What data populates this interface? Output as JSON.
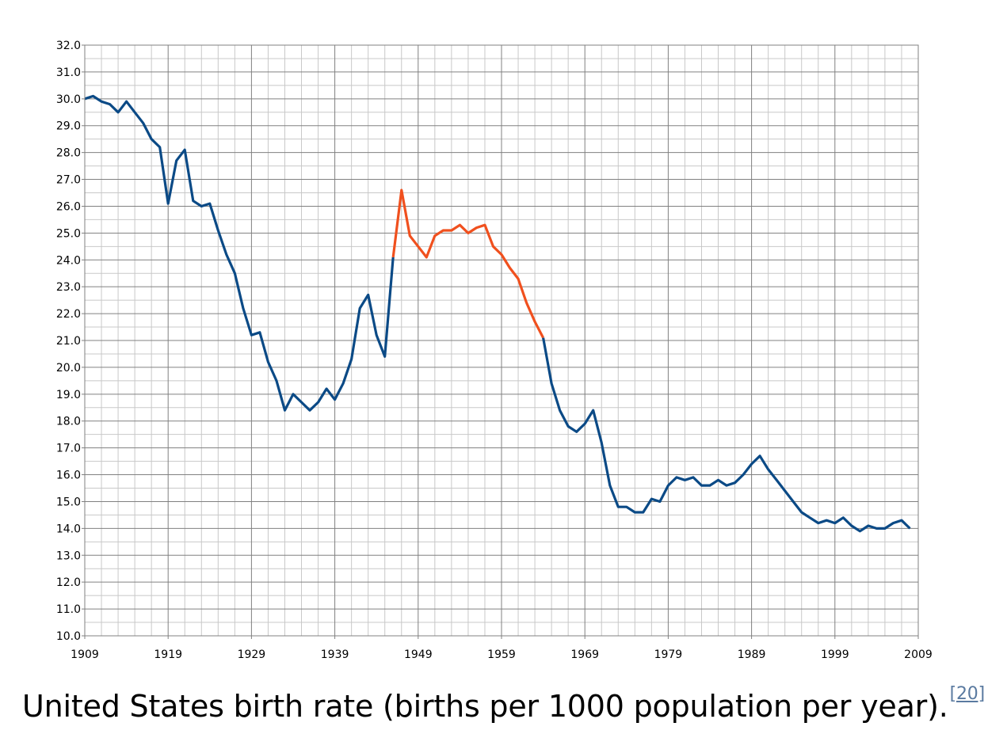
{
  "caption": {
    "text": "United States birth rate (births per 1000 population per year).",
    "ref": "[20]"
  },
  "chart_data": {
    "type": "line",
    "title": "",
    "xlabel": "",
    "ylabel": "",
    "xlim": [
      1909,
      2009
    ],
    "ylim": [
      10,
      32
    ],
    "x_ticks": [
      "1909",
      "1919",
      "1929",
      "1939",
      "1949",
      "1959",
      "1969",
      "1979",
      "1989",
      "1999",
      "2009"
    ],
    "y_ticks": [
      "10.0",
      "11.0",
      "12.0",
      "13.0",
      "14.0",
      "15.0",
      "16.0",
      "17.0",
      "18.0",
      "19.0",
      "20.0",
      "21.0",
      "22.0",
      "23.0",
      "24.0",
      "25.0",
      "26.0",
      "27.0",
      "28.0",
      "29.0",
      "30.0",
      "31.0",
      "32.0"
    ],
    "grid": true,
    "legend": "none",
    "colors": {
      "baseline": "#0b4a86",
      "baby_boom": "#f0501e",
      "major_grid": "#808080",
      "minor_grid": "#c8c8c8"
    },
    "segments": [
      {
        "color_key": "baseline",
        "x": [
          1909,
          1910,
          1911,
          1912,
          1913,
          1914,
          1915,
          1916,
          1917,
          1918,
          1919,
          1920,
          1921,
          1922,
          1923,
          1924,
          1925,
          1926,
          1927,
          1928,
          1929,
          1930,
          1931,
          1932,
          1933,
          1934,
          1935,
          1936,
          1937,
          1938,
          1939,
          1940,
          1941,
          1942,
          1943,
          1944,
          1945,
          1946
        ],
        "y": [
          30.0,
          30.1,
          29.9,
          29.8,
          29.5,
          29.9,
          29.5,
          29.1,
          28.5,
          28.2,
          26.1,
          27.7,
          28.1,
          26.2,
          26.0,
          26.1,
          25.1,
          24.2,
          23.5,
          22.2,
          21.2,
          21.3,
          20.2,
          19.5,
          18.4,
          19.0,
          18.7,
          18.4,
          18.7,
          19.2,
          18.8,
          19.4,
          20.3,
          22.2,
          22.7,
          21.2,
          20.4,
          24.1
        ]
      },
      {
        "color_key": "baby_boom",
        "x": [
          1946,
          1947,
          1948,
          1949,
          1950,
          1951,
          1952,
          1953,
          1954,
          1955,
          1956,
          1957,
          1958,
          1959,
          1960,
          1961,
          1962,
          1963,
          1964
        ],
        "y": [
          24.1,
          26.6,
          24.9,
          24.5,
          24.1,
          24.9,
          25.1,
          25.1,
          25.3,
          25.0,
          25.2,
          25.3,
          24.5,
          24.2,
          23.7,
          23.3,
          22.4,
          21.7,
          21.1
        ]
      },
      {
        "color_key": "baseline",
        "x": [
          1964,
          1965,
          1966,
          1967,
          1968,
          1969,
          1970,
          1971,
          1972,
          1973,
          1974,
          1975,
          1976,
          1977,
          1978,
          1979,
          1980,
          1981,
          1982,
          1983,
          1984,
          1985,
          1986,
          1987,
          1988,
          1989,
          1990,
          1991,
          1992,
          1993,
          1994,
          1995,
          1996,
          1997,
          1998,
          1999,
          2000,
          2001,
          2002,
          2003,
          2004,
          2005,
          2006,
          2007,
          2008
        ],
        "y": [
          21.1,
          19.4,
          18.4,
          17.8,
          17.6,
          17.9,
          18.4,
          17.2,
          15.6,
          14.8,
          14.8,
          14.6,
          14.6,
          15.1,
          15.0,
          15.6,
          15.9,
          15.8,
          15.9,
          15.6,
          15.6,
          15.8,
          15.6,
          15.7,
          16.0,
          16.4,
          16.7,
          16.2,
          15.8,
          15.4,
          15.0,
          14.6,
          14.4,
          14.2,
          14.3,
          14.2,
          14.4,
          14.1,
          13.9,
          14.1,
          14.0,
          14.0,
          14.2,
          14.3,
          14.0
        ]
      }
    ]
  }
}
